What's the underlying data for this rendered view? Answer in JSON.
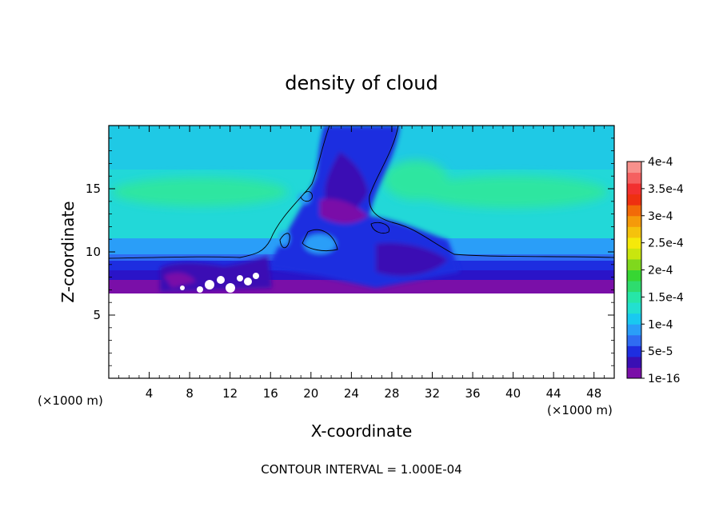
{
  "chart_data": {
    "type": "heatmap",
    "title": "density of cloud",
    "xlabel": "X-coordinate",
    "ylabel": "Z-coordinate",
    "x_unit": "(×1000 m)",
    "y_unit": "(×1000 m)",
    "xlim": [
      0,
      50
    ],
    "ylim": [
      0,
      20
    ],
    "x_ticks": [
      4,
      8,
      12,
      16,
      20,
      24,
      28,
      32,
      36,
      40,
      44,
      48
    ],
    "y_ticks": [
      5,
      10,
      15
    ],
    "contour_note": "CONTOUR INTERVAL = 1.000E-04",
    "colorbar": {
      "labels": [
        "1e-16",
        "5e-5",
        "1e-4",
        "1.5e-4",
        "2e-4",
        "2.5e-4",
        "3e-4",
        "3.5e-4",
        "4e-4"
      ],
      "colors": [
        "#7a0fa8",
        "#3a0fb4",
        "#1e2ee0",
        "#2f6cf2",
        "#2a9ef8",
        "#19c9f0",
        "#22e0d0",
        "#26e6a8",
        "#2edc6e",
        "#37d633",
        "#7fd81d",
        "#c9e60e",
        "#f5e90a",
        "#f5c20c",
        "#f59a0a",
        "#f26a08",
        "#ee3010",
        "#f23030",
        "#f56060",
        "#f7918c"
      ]
    },
    "grid": false
  }
}
